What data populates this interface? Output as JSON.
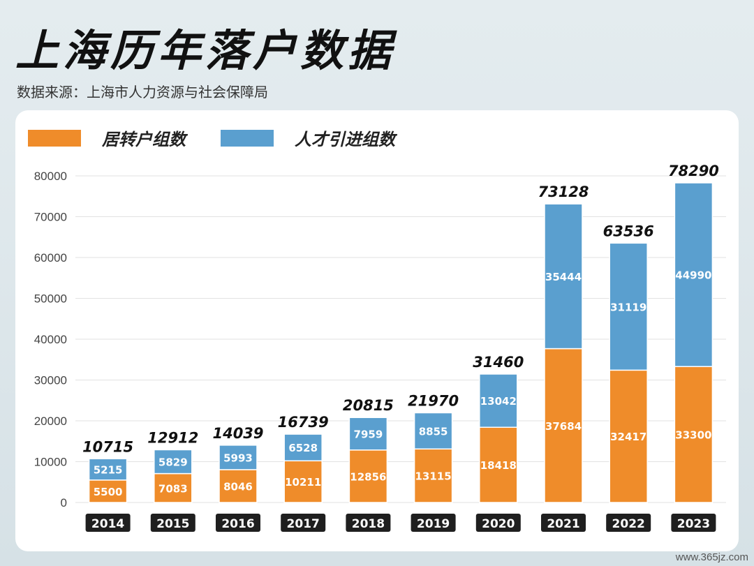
{
  "title": "上海历年落户数据",
  "subtitle": "数据来源：上海市人力资源与社会保障局",
  "watermark": "www.365jz.com",
  "legend": [
    {
      "label": "居转户组数",
      "color": "#ef8c2a"
    },
    {
      "label": "人才引进组数",
      "color": "#5a9fcf"
    }
  ],
  "chart_data": {
    "type": "bar",
    "stacked": true,
    "categories": [
      "2014",
      "2015",
      "2016",
      "2017",
      "2018",
      "2019",
      "2020",
      "2021",
      "2022",
      "2023"
    ],
    "series": [
      {
        "name": "居转户组数",
        "color": "#ef8c2a",
        "values": [
          5500,
          7083,
          8046,
          10211,
          12856,
          13115,
          18418,
          37684,
          32417,
          33300
        ]
      },
      {
        "name": "人才引进组数",
        "color": "#5a9fcf",
        "values": [
          5215,
          5829,
          5993,
          6528,
          7959,
          8855,
          13042,
          35444,
          31119,
          44990
        ]
      }
    ],
    "totals": [
      10715,
      12912,
      14039,
      16739,
      20815,
      21970,
      31460,
      73128,
      63536,
      78290
    ],
    "ylim": [
      0,
      80000
    ],
    "yticks": [
      0,
      10000,
      20000,
      30000,
      40000,
      50000,
      60000,
      70000,
      80000
    ],
    "grid": true,
    "legend_position": "top-left"
  }
}
